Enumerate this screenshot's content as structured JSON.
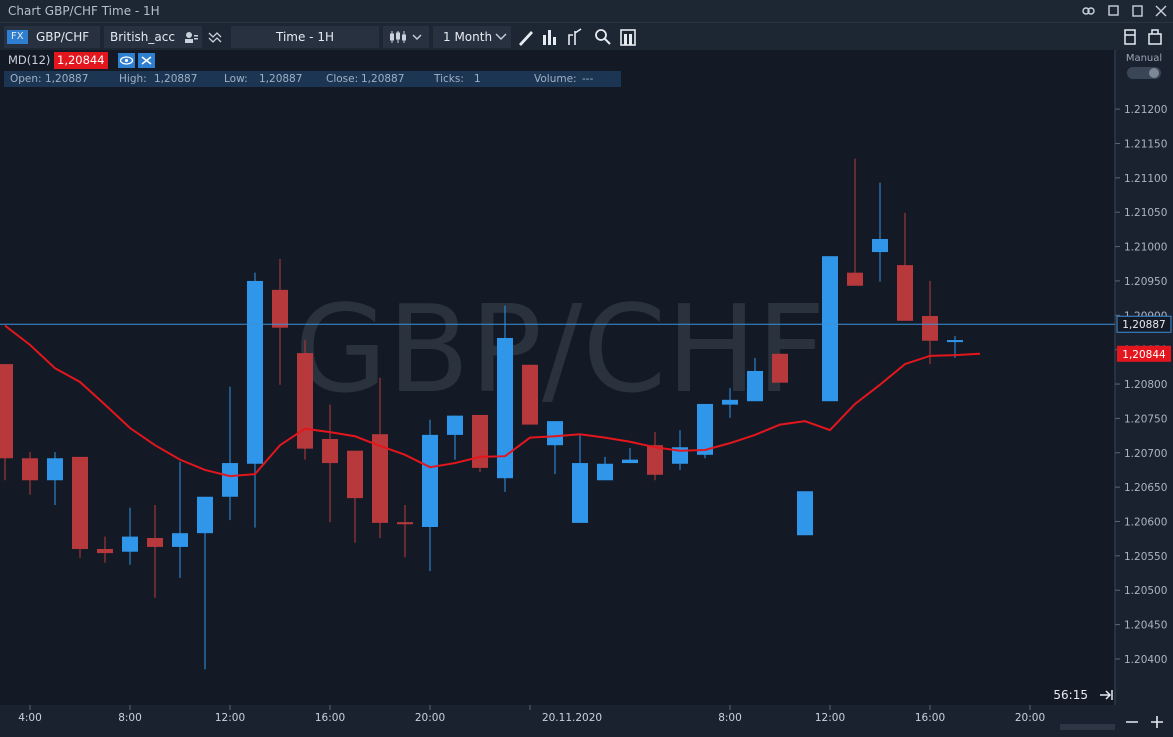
{
  "window": {
    "title": "Chart GBP/CHF Time - 1H"
  },
  "toolbar": {
    "market": "FX",
    "symbol": "GBP/CHF",
    "account": "British_acc",
    "timeframe": "Time - 1H",
    "range": "1 Month"
  },
  "indicator": {
    "name": "MD(12)",
    "value": "1,20844"
  },
  "ohlc_bar": [
    {
      "label": "Open:",
      "value": "1,20887"
    },
    {
      "label": "High:",
      "value": "1,20887"
    },
    {
      "label": "Low:",
      "value": "1,20887"
    },
    {
      "label": "Close:",
      "value": "1,20887"
    },
    {
      "label": "Ticks:",
      "value": "1"
    },
    {
      "label": "Volume:",
      "value": "---"
    }
  ],
  "mode": "Manual",
  "countdown": "56:15",
  "watermark": "GBP/CHF",
  "chart_data": {
    "type": "candlestick",
    "categories": [
      null,
      "4:00",
      null,
      null,
      null,
      "8:00",
      null,
      null,
      null,
      "12:00",
      null,
      null,
      null,
      "16:00",
      null,
      null,
      null,
      "20:00",
      null,
      null,
      null,
      "20.11.2020",
      null,
      null,
      null,
      null,
      null,
      null,
      null,
      "8:00",
      null,
      null,
      null,
      "12:00",
      null,
      null,
      null,
      "16:00",
      null,
      null,
      null,
      "20:00",
      null,
      null,
      null
    ],
    "open": [
      1.20829,
      1.20692,
      1.2066,
      1.20694,
      1.2056,
      1.20556,
      1.20576,
      1.20563,
      1.20583,
      1.20636,
      1.20684,
      1.20937,
      1.20845,
      1.2072,
      1.20703,
      1.20727,
      1.20599,
      1.20592,
      1.20726,
      1.20755,
      1.20663,
      1.20828,
      1.20711,
      1.20598,
      1.2066,
      1.20685,
      1.20711,
      1.20684,
      1.20697,
      1.2077,
      1.20775,
      1.20844,
      1.2058,
      1.20775,
      1.20962,
      1.20992,
      1.20973,
      1.20899,
      1.20861,
      null,
      null,
      null,
      null,
      null,
      null
    ],
    "high": [
      1.20829,
      1.20701,
      1.20701,
      1.20694,
      1.20578,
      1.2062,
      1.20624,
      1.20687,
      1.20636,
      1.20796,
      1.20962,
      1.20982,
      1.20864,
      1.2077,
      1.20703,
      1.20809,
      1.20624,
      1.20748,
      1.20754,
      1.20755,
      1.20914,
      1.20828,
      1.20746,
      1.20726,
      1.20694,
      1.20707,
      1.2073,
      1.20733,
      1.20771,
      1.20794,
      1.20838,
      1.20844,
      1.20644,
      1.20986,
      1.21128,
      1.21093,
      1.21049,
      1.2095,
      1.2087,
      null,
      null,
      null,
      null,
      null,
      null
    ],
    "low": [
      1.2066,
      1.20639,
      1.20624,
      1.20547,
      1.2054,
      1.20537,
      1.20489,
      1.20518,
      1.20385,
      1.20602,
      1.20591,
      1.20799,
      1.2069,
      1.20599,
      1.20569,
      1.20576,
      1.20548,
      1.20528,
      1.2069,
      1.20672,
      1.20643,
      1.20741,
      1.20669,
      1.20598,
      1.2066,
      1.20685,
      1.2066,
      1.20675,
      1.20692,
      1.20751,
      1.20775,
      1.20802,
      1.2058,
      1.20775,
      1.20943,
      1.20949,
      1.20892,
      1.20829,
      1.20838,
      null,
      null,
      null,
      null,
      null,
      null
    ],
    "close": [
      1.20692,
      1.2066,
      1.20692,
      1.2056,
      1.20554,
      1.20578,
      1.20563,
      1.20583,
      1.20636,
      1.20685,
      1.2095,
      1.20882,
      1.20706,
      1.20685,
      1.20634,
      1.20598,
      1.20596,
      1.20726,
      1.20754,
      1.20678,
      1.20867,
      1.20741,
      1.20746,
      1.20685,
      1.20684,
      1.2069,
      1.20668,
      1.20708,
      1.20771,
      1.20777,
      1.20819,
      1.20802,
      1.20644,
      1.20986,
      1.20943,
      1.21011,
      1.20892,
      1.20863,
      1.20864,
      null,
      null,
      null,
      null,
      null,
      null
    ],
    "up_color": "#2f96ea",
    "down_color": "#b8393c",
    "series": [
      {
        "color": "#e3161d",
        "values": [
          1.20885,
          1.20857,
          1.20823,
          1.20803,
          1.2077,
          1.20736,
          1.20711,
          1.2069,
          1.20675,
          1.20666,
          1.20669,
          1.20711,
          1.20735,
          1.2073,
          1.20724,
          1.2071,
          1.20697,
          1.20679,
          1.20685,
          1.20694,
          1.20695,
          1.20722,
          1.20724,
          1.20727,
          1.20722,
          1.20716,
          1.20708,
          1.20703,
          1.20704,
          1.20714,
          1.20726,
          1.20741,
          1.20746,
          1.20733,
          1.20771,
          1.20799,
          1.20829,
          1.20841,
          1.20842,
          1.20844,
          null,
          null,
          null,
          null,
          null
        ]
      }
    ],
    "price_line": {
      "value": 1.20887,
      "label": "1,20887",
      "color": "#3d8fd6"
    },
    "ma_marker": {
      "value": 1.20844,
      "label": "1,20844"
    },
    "ylim": [
      1.20333,
      1.21286
    ],
    "yticks": [
      {
        "value": 1.204,
        "label": "1.20400"
      },
      {
        "value": 1.2045,
        "label": "1.20450"
      },
      {
        "value": 1.205,
        "label": "1.20500"
      },
      {
        "value": 1.2055,
        "label": "1.20550"
      },
      {
        "value": 1.206,
        "label": "1.20600"
      },
      {
        "value": 1.2065,
        "label": "1.20650"
      },
      {
        "value": 1.207,
        "label": "1.20700"
      },
      {
        "value": 1.2075,
        "label": "1.20750"
      },
      {
        "value": 1.208,
        "label": "1.20800"
      },
      {
        "value": 1.2085,
        "label": "1.20850"
      },
      {
        "value": 1.209,
        "label": "1.20900"
      },
      {
        "value": 1.2095,
        "label": "1.20950"
      },
      {
        "value": 1.21,
        "label": "1.21000"
      },
      {
        "value": 1.2105,
        "label": "1.21050"
      },
      {
        "value": 1.211,
        "label": "1.21100"
      },
      {
        "value": 1.2115,
        "label": "1.21150"
      },
      {
        "value": 1.212,
        "label": "1.21200"
      }
    ]
  }
}
